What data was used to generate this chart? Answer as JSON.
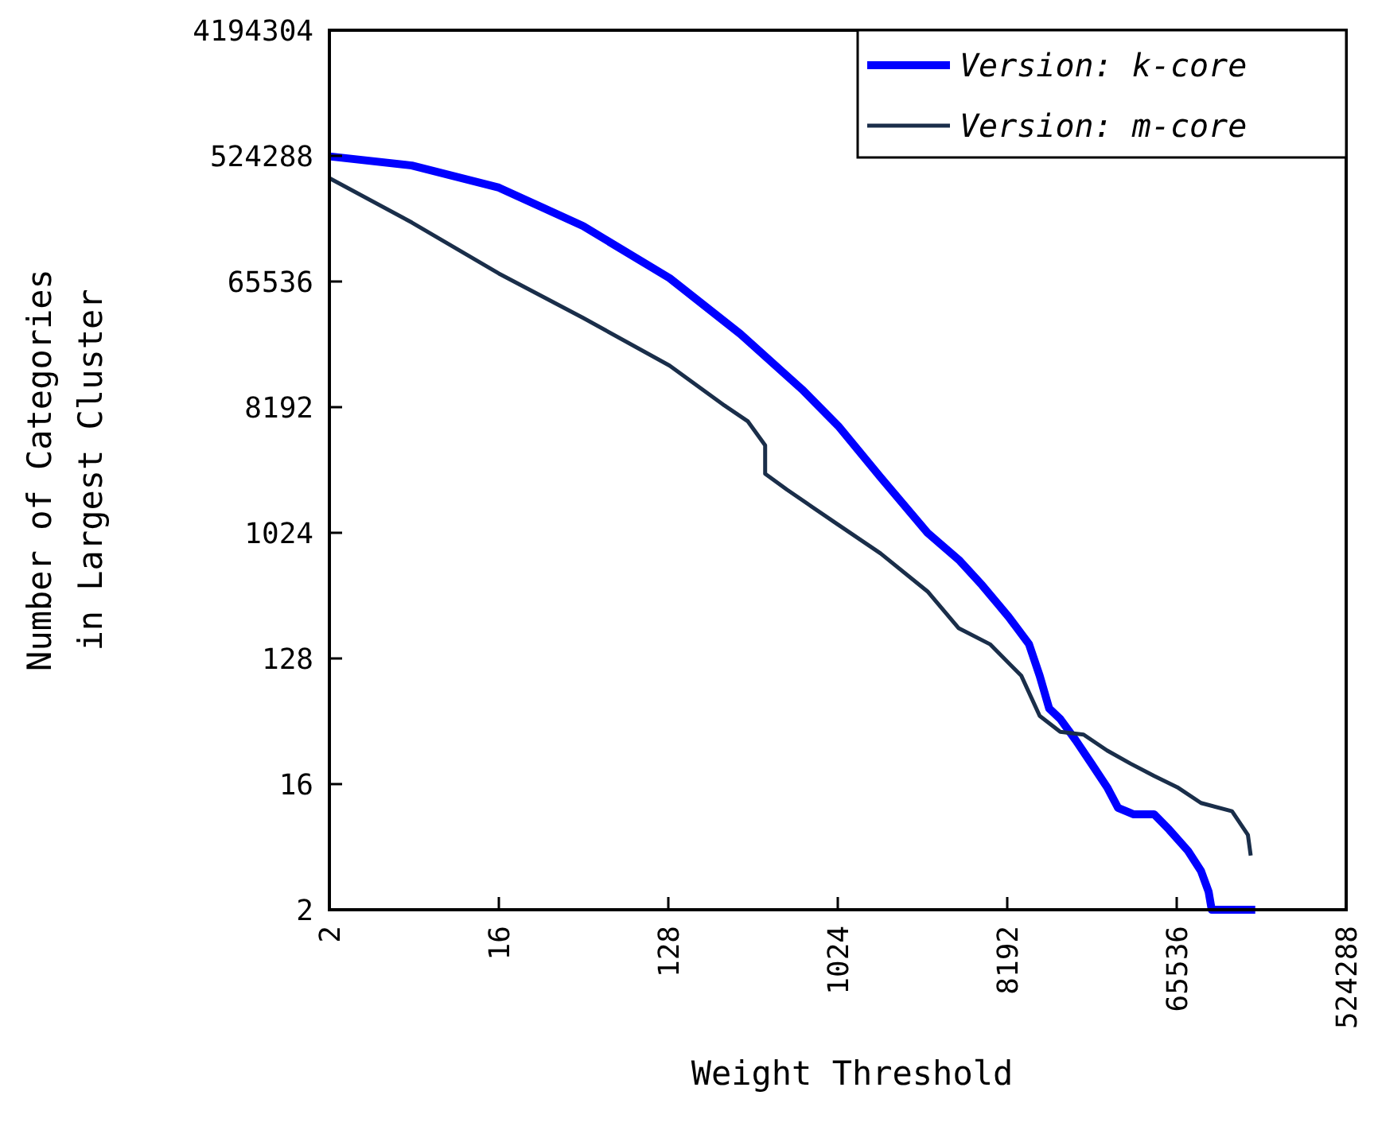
{
  "chart_data": {
    "type": "line",
    "xlabel": "Weight Threshold",
    "ylabel": "Number of Categories in Largest Cluster",
    "log": "xy",
    "xlim": [
      2,
      524288
    ],
    "xticks": [
      2,
      16,
      128,
      1024,
      8192,
      65536,
      524288
    ],
    "ylim": [
      2,
      4194304
    ],
    "yticks": [
      2,
      16,
      128,
      1024,
      8192,
      65536,
      524288,
      4194304
    ],
    "legend": "top right",
    "grid": false,
    "series": [
      {
        "name": "Version: k-core",
        "color": "#0000ff",
        "x": [
          2,
          5.5,
          16,
          45,
          130,
          310,
          660,
          1030,
          1730,
          3080,
          4520,
          6020,
          8350,
          10700,
          12200,
          13700,
          15700,
          19000,
          23000,
          27900,
          31900,
          38700,
          49700,
          59900,
          75300,
          88300,
          96900,
          100700,
          171800
        ],
        "values": [
          520000,
          447000,
          310000,
          164000,
          69300,
          27500,
          11000,
          6000,
          2570,
          1024,
          655,
          430,
          254,
          162,
          96,
          56,
          47,
          33,
          22.5,
          15.2,
          10.8,
          9.7,
          9.7,
          7.5,
          5.3,
          3.8,
          2.7,
          2,
          2
        ]
      },
      {
        "name": "Version: m-core",
        "color": "#1a2e4a",
        "x": [
          2,
          5.5,
          16,
          45,
          130,
          255,
          340,
          420,
          420,
          549,
          1030,
          1730,
          3080,
          4520,
          6630,
          9740,
          12200,
          15700,
          20900,
          27900,
          37100,
          49700,
          66000,
          88300,
          129200,
          157000,
          162500
        ],
        "values": [
          363000,
          174000,
          74800,
          35900,
          16300,
          8420,
          6470,
          4360,
          2720,
          2090,
          1170,
          729,
          388,
          211,
          162,
          96,
          49.5,
          38,
          36.3,
          27.9,
          22.5,
          18.3,
          15.2,
          11.7,
          10.2,
          6.9,
          4.9
        ]
      }
    ]
  }
}
